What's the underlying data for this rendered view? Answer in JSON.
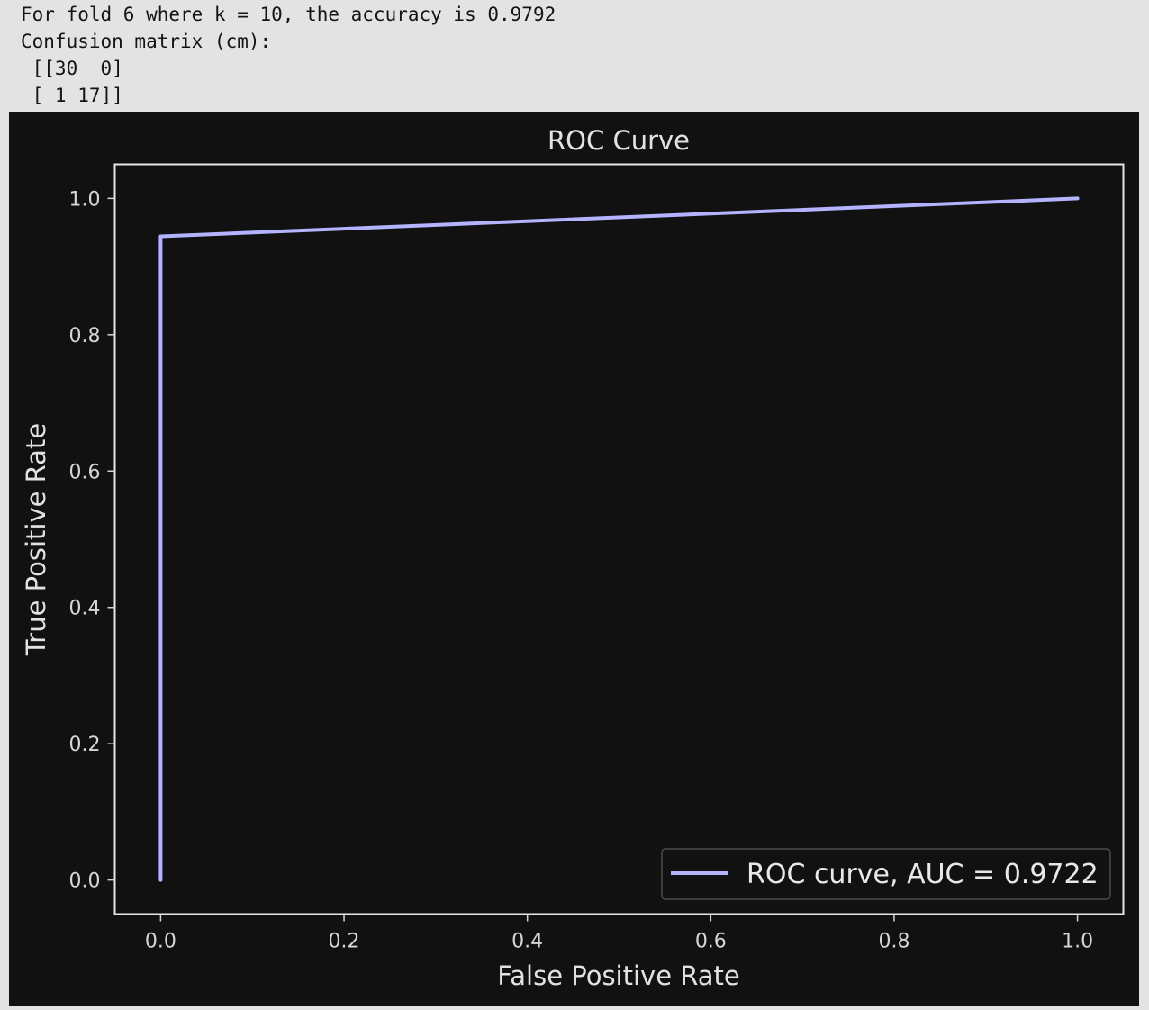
{
  "console": {
    "lines": [
      "For fold 6 where k = 10, the accuracy is 0.9792",
      "Confusion matrix (cm):",
      " [[30  0]",
      " [ 1 17]]"
    ]
  },
  "colors": {
    "background": "#e3e3e3",
    "figure_background": "#111111",
    "axes_spine": "#e6e6e6",
    "line": "#b3b3ff",
    "text": "#e2e2e2"
  },
  "chart_data": {
    "type": "line",
    "title": "ROC Curve",
    "xlabel": "False Positive Rate",
    "ylabel": "True Positive Rate",
    "xlim": [
      -0.05,
      1.05
    ],
    "ylim": [
      -0.05,
      1.05
    ],
    "xticks": [
      "0.0",
      "0.2",
      "0.4",
      "0.6",
      "0.8",
      "1.0"
    ],
    "yticks": [
      "0.0",
      "0.2",
      "0.4",
      "0.6",
      "0.8",
      "1.0"
    ],
    "grid": false,
    "legend": "lower right",
    "series": [
      {
        "name": "ROC curve, AUC = 0.9722",
        "x": [
          0.0,
          0.0,
          1.0
        ],
        "y": [
          0.0,
          0.9444,
          1.0
        ]
      }
    ]
  }
}
